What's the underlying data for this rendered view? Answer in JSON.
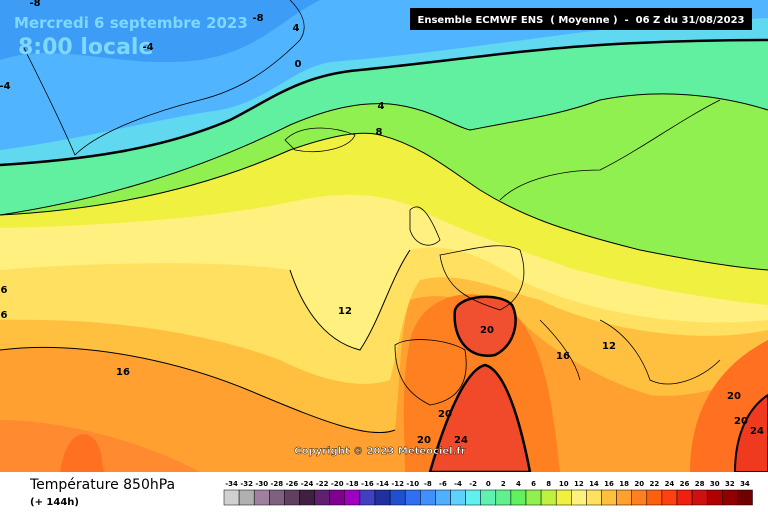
{
  "header": {
    "date": "Mercredi 6 septembre 2023",
    "time": "8:00 locale",
    "model": "Ensemble ECMWF ENS  ( Moyenne )  -  06 Z du 31/08/2023"
  },
  "map": {
    "copyright": "Copyright © 2023 Meteociel.fr",
    "contour_labels": [
      -8,
      -8,
      4,
      -4,
      -4,
      0,
      4,
      8,
      12,
      16,
      16,
      12,
      20,
      20,
      20,
      24,
      20,
      20,
      24,
      6,
      6
    ]
  },
  "footer": {
    "title": "Température 850hPa",
    "lead": "(+ 144h)"
  },
  "legend": {
    "values": [
      -34,
      -32,
      -30,
      -28,
      -26,
      -24,
      -22,
      -20,
      -18,
      -16,
      -14,
      -12,
      -10,
      -8,
      -6,
      -4,
      -2,
      0,
      2,
      4,
      6,
      8,
      10,
      12,
      14,
      16,
      18,
      20,
      22,
      24,
      26,
      28,
      30,
      32,
      34
    ],
    "colors": [
      "#d0d0d0",
      "#b0b0b0",
      "#a080a0",
      "#806080",
      "#604060",
      "#402040",
      "#602070",
      "#800090",
      "#a000c0",
      "#4040c0",
      "#2030a0",
      "#2050d0",
      "#3070f0",
      "#4090ff",
      "#50b0ff",
      "#60d0ff",
      "#60f0f0",
      "#60f0b0",
      "#60f090",
      "#60f060",
      "#90f050",
      "#c0f040",
      "#f0f040",
      "#fff080",
      "#ffe060",
      "#ffc040",
      "#ffa030",
      "#ff8020",
      "#ff6010",
      "#ff4010",
      "#f02010",
      "#d01010",
      "#b00000",
      "#900000",
      "#700000"
    ]
  }
}
